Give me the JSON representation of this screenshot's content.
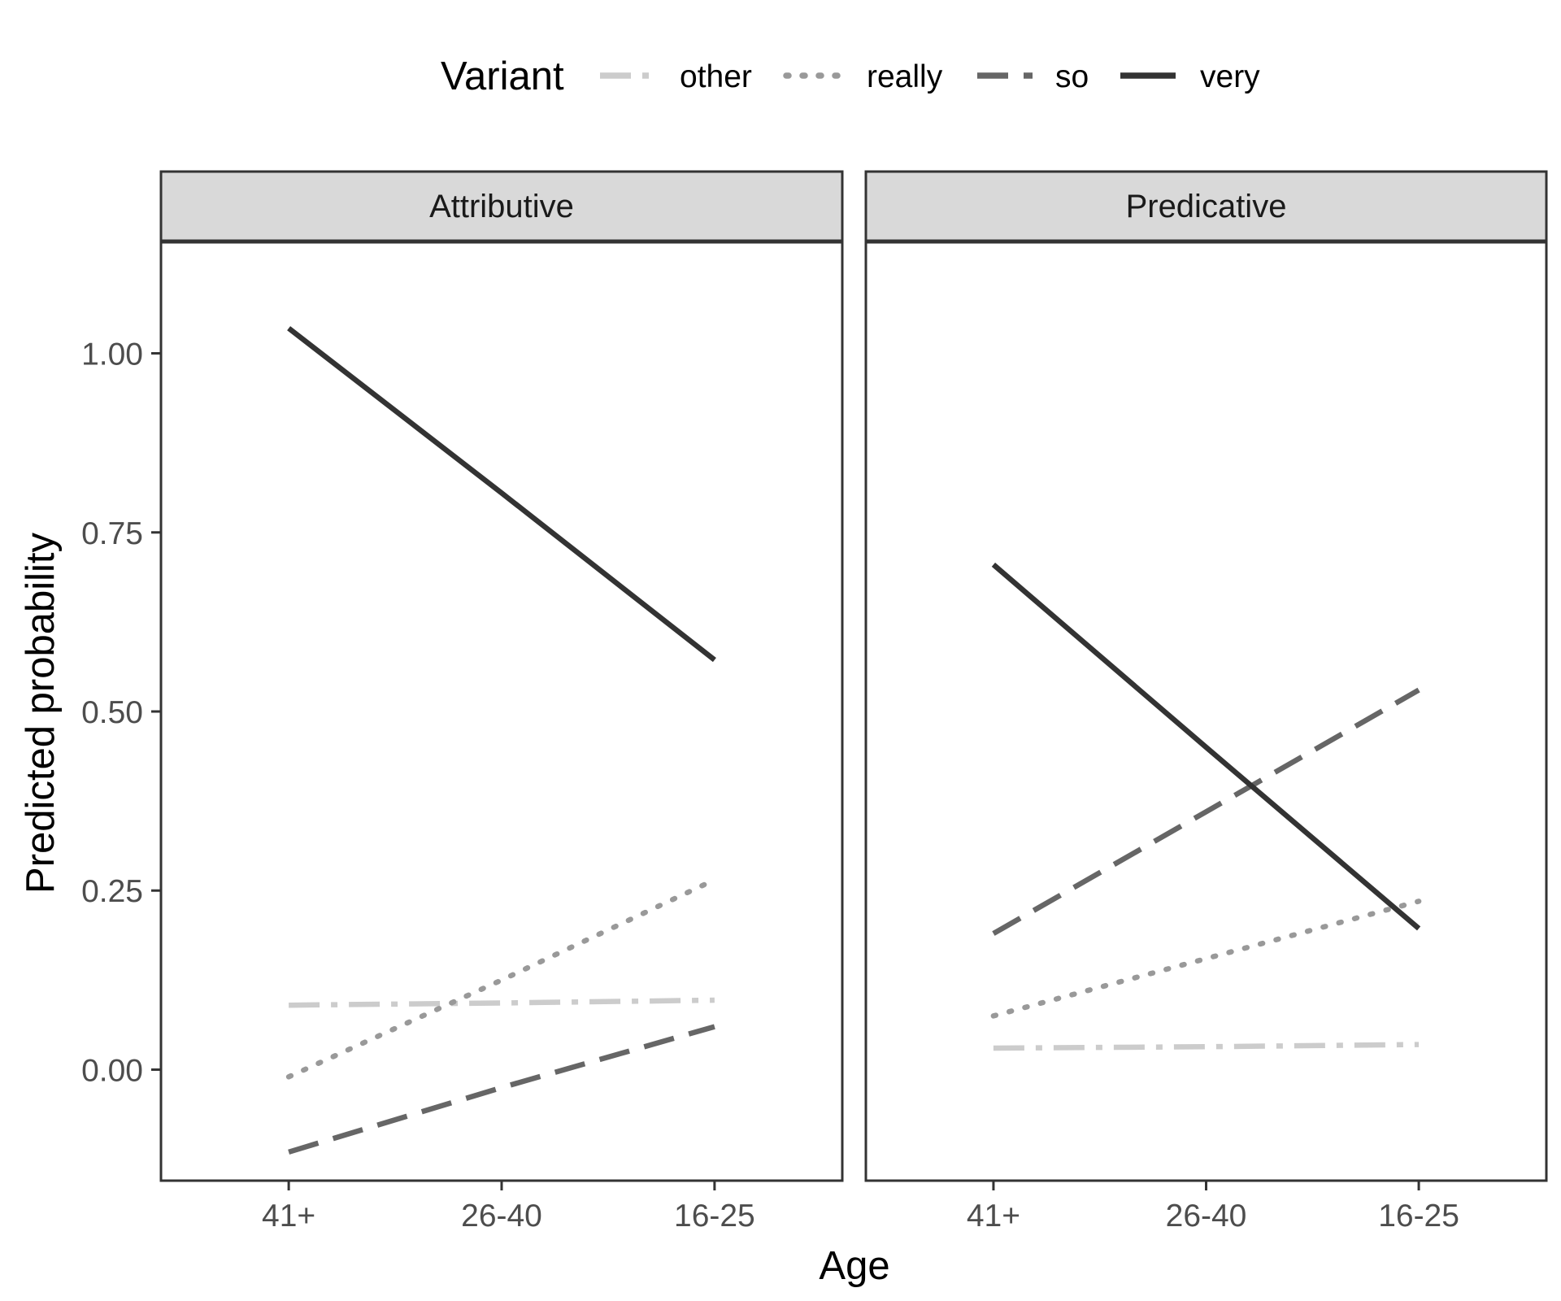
{
  "chart_data": {
    "type": "line",
    "xlabel": "Age",
    "ylabel": "Predicted probability",
    "categories": [
      "41+",
      "26-40",
      "16-25"
    ],
    "ylim": [
      -0.155,
      1.155
    ],
    "yticks": [
      0.0,
      0.25,
      0.5,
      0.75,
      1.0
    ],
    "ytick_labels": [
      "0.00",
      "0.25",
      "0.50",
      "0.75",
      "1.00"
    ],
    "grid": false,
    "legend": {
      "title": "Variant",
      "placement": "top",
      "entries": [
        {
          "key": "other",
          "label": "other"
        },
        {
          "key": "really",
          "label": "really"
        },
        {
          "key": "so",
          "label": "so"
        },
        {
          "key": "very",
          "label": "very"
        }
      ]
    },
    "styles": {
      "other": {
        "color": "#cccccc",
        "dash": "longdashdot"
      },
      "really": {
        "color": "#999999",
        "dash": "dotted"
      },
      "so": {
        "color": "#666666",
        "dash": "longdash"
      },
      "very": {
        "color": "#333333",
        "dash": "solid"
      }
    },
    "panels": [
      {
        "strip": "Attributive",
        "series": [
          {
            "key": "other",
            "values": [
              0.09,
              0.093,
              0.097
            ]
          },
          {
            "key": "really",
            "values": [
              -0.01,
              0.125,
              0.265
            ]
          },
          {
            "key": "so",
            "values": [
              -0.115,
              -0.025,
              0.06
            ]
          },
          {
            "key": "very",
            "values": [
              1.035,
              0.805,
              0.572
            ]
          }
        ]
      },
      {
        "strip": "Predicative",
        "series": [
          {
            "key": "other",
            "values": [
              0.03,
              0.032,
              0.035
            ]
          },
          {
            "key": "really",
            "values": [
              0.075,
              0.155,
              0.235
            ]
          },
          {
            "key": "so",
            "values": [
              0.19,
              0.36,
              0.53
            ]
          },
          {
            "key": "very",
            "values": [
              0.705,
              0.45,
              0.197
            ]
          }
        ]
      }
    ]
  }
}
